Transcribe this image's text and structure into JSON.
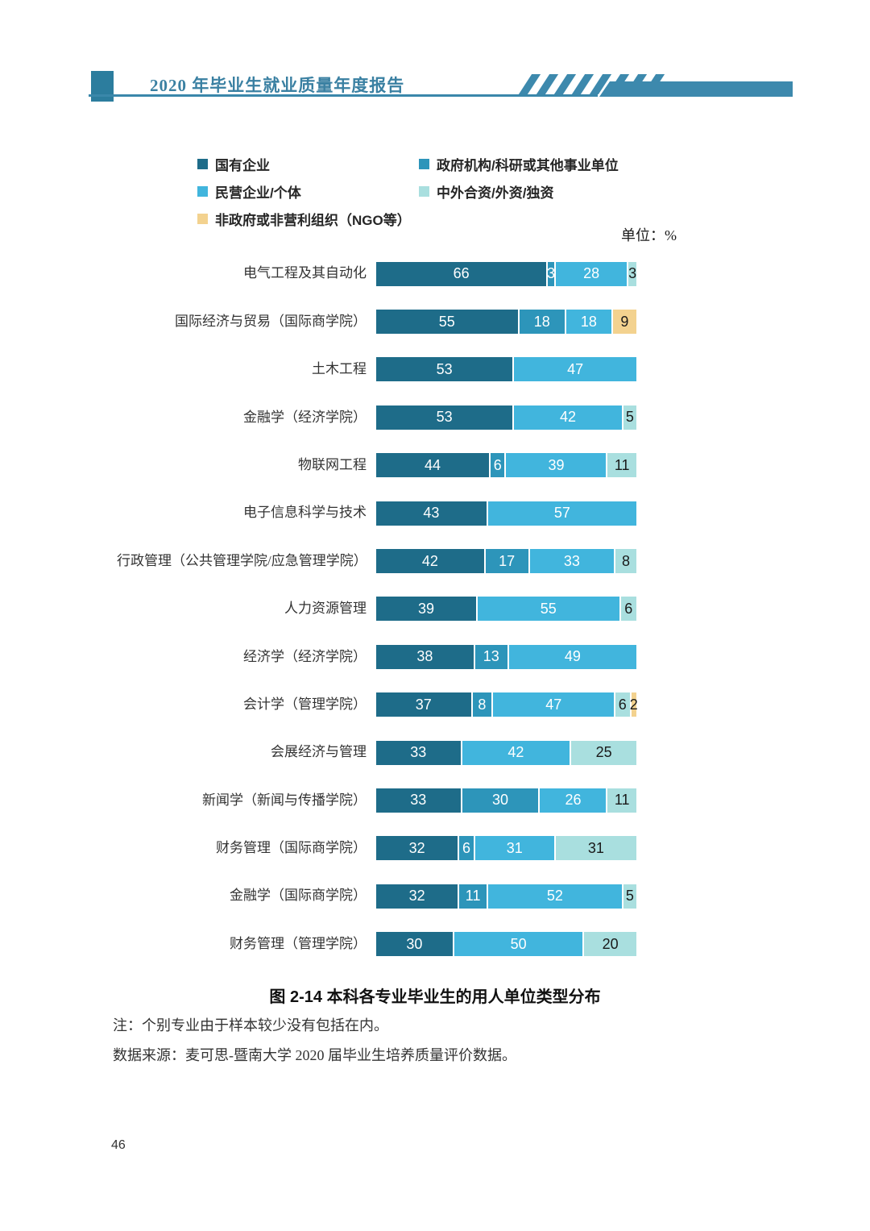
{
  "header": {
    "title": "2020 年毕业生就业质量年度报告"
  },
  "legend": {
    "columns": [
      [
        {
          "label": "国有企业",
          "color": "#1e6c89"
        },
        {
          "label": "民营企业/个体",
          "color": "#41b5dd"
        },
        {
          "label": "非政府或非营利组织（NGO等）",
          "color": "#f3d28f"
        }
      ],
      [
        {
          "label": "政府机构/科研或其他事业单位",
          "color": "#2d95ba"
        },
        {
          "label": "中外合资/外资/独资",
          "color": "#a9dfdf"
        }
      ]
    ],
    "unit_label": "单位：%"
  },
  "chart_data": {
    "type": "bar",
    "orientation": "horizontal",
    "stacked": true,
    "unit": "%",
    "xlim": [
      0,
      100
    ],
    "title": "图 2-14 本科各专业毕业生的用人单位类型分布",
    "series": [
      {
        "name": "国有企业",
        "color": "#1e6c89",
        "text": "#ffffff"
      },
      {
        "name": "政府机构/科研或其他事业单位",
        "color": "#2d95ba",
        "text": "#ffffff"
      },
      {
        "name": "民营企业/个体",
        "color": "#41b5dd",
        "text": "#ffffff"
      },
      {
        "name": "中外合资/外资/独资",
        "color": "#a9dfdf",
        "text": "#1a1a1a"
      },
      {
        "name": "非政府或非营利组织（NGO等）",
        "color": "#f3d28f",
        "text": "#1a1a1a"
      }
    ],
    "rows": [
      {
        "category": "电气工程及其自动化",
        "values": [
          66,
          3,
          28,
          3,
          0
        ]
      },
      {
        "category": "国际经济与贸易（国际商学院）",
        "values": [
          55,
          18,
          18,
          0,
          9
        ]
      },
      {
        "category": "土木工程",
        "values": [
          53,
          0,
          47,
          0,
          0
        ]
      },
      {
        "category": "金融学（经济学院）",
        "values": [
          53,
          0,
          42,
          5,
          0
        ]
      },
      {
        "category": "物联网工程",
        "values": [
          44,
          6,
          39,
          11,
          0
        ]
      },
      {
        "category": "电子信息科学与技术",
        "values": [
          43,
          0,
          57,
          0,
          0
        ]
      },
      {
        "category": "行政管理（公共管理学院/应急管理学院）",
        "values": [
          42,
          17,
          33,
          8,
          0
        ]
      },
      {
        "category": "人力资源管理",
        "values": [
          39,
          0,
          55,
          6,
          0
        ]
      },
      {
        "category": "经济学（经济学院）",
        "values": [
          38,
          13,
          49,
          0,
          0
        ]
      },
      {
        "category": "会计学（管理学院）",
        "values": [
          37,
          8,
          47,
          6,
          2
        ]
      },
      {
        "category": "会展经济与管理",
        "values": [
          33,
          0,
          42,
          25,
          0
        ]
      },
      {
        "category": "新闻学（新闻与传播学院）",
        "values": [
          33,
          30,
          26,
          11,
          0
        ]
      },
      {
        "category": "财务管理（国际商学院）",
        "values": [
          32,
          6,
          31,
          31,
          0
        ]
      },
      {
        "category": "金融学（国际商学院）",
        "values": [
          32,
          11,
          52,
          5,
          0
        ]
      },
      {
        "category": "财务管理（管理学院）",
        "values": [
          30,
          0,
          50,
          20,
          0
        ]
      }
    ]
  },
  "caption": "图 2-14 本科各专业毕业生的用人单位类型分布",
  "note": "注：个别专业由于样本较少没有包括在内。",
  "source": "数据来源：麦可思-暨南大学 2020 届毕业生培养质量评价数据。",
  "page": {
    "number": "46"
  }
}
